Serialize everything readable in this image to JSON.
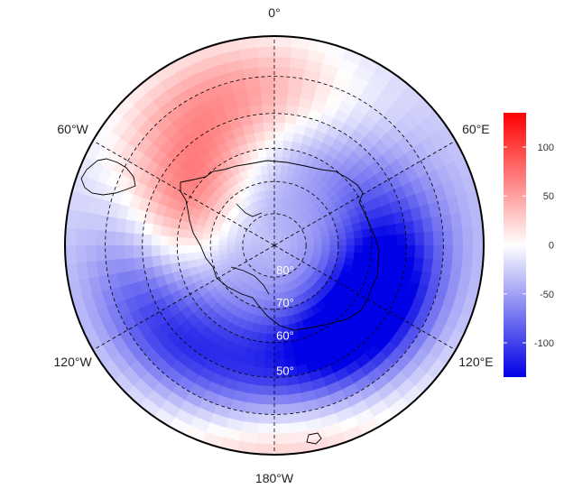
{
  "map": {
    "projection": "south-polar stereographic",
    "lon_labels": [
      {
        "lon": 0,
        "text": "0°"
      },
      {
        "lon": -60,
        "text": "60°W"
      },
      {
        "lon": 60,
        "text": "60°E"
      },
      {
        "lon": -120,
        "text": "120°W"
      },
      {
        "lon": 120,
        "text": "120°E"
      },
      {
        "lon": 180,
        "text": "180°W"
      }
    ],
    "lat_labels": [
      {
        "lat": -80,
        "text": "80°"
      },
      {
        "lat": -70,
        "text": "70°"
      },
      {
        "lat": -60,
        "text": "60°"
      },
      {
        "lat": -50,
        "text": "50°"
      }
    ],
    "meridians_deg": [
      0,
      60,
      120,
      180,
      240,
      300
    ],
    "parallels_deg": [
      -80,
      -70,
      -60,
      -50,
      -40
    ],
    "outer_boundary_lat": -30,
    "field_features": [
      {
        "kind": "positive_max",
        "lon": -60,
        "lat": -60,
        "value": 75
      },
      {
        "kind": "positive_ridge",
        "lon": -20,
        "lat": -42,
        "value": 45
      },
      {
        "kind": "positive_secondary",
        "lon": 180,
        "lat": -32,
        "value": 30
      },
      {
        "kind": "negative_min",
        "lon": 125,
        "lat": -55,
        "value": -120
      },
      {
        "kind": "negative_trough",
        "lon": -130,
        "lat": -48,
        "value": -60
      }
    ]
  },
  "colorbar": {
    "min": -135,
    "max": 135,
    "ticks": [
      100,
      50,
      0,
      -50,
      -100
    ],
    "tick_labels": [
      "100",
      "50",
      "0",
      "-50",
      "-100"
    ],
    "colors": {
      "low": "#0000e6",
      "mid": "#ffffff",
      "high": "#ff0000"
    }
  }
}
